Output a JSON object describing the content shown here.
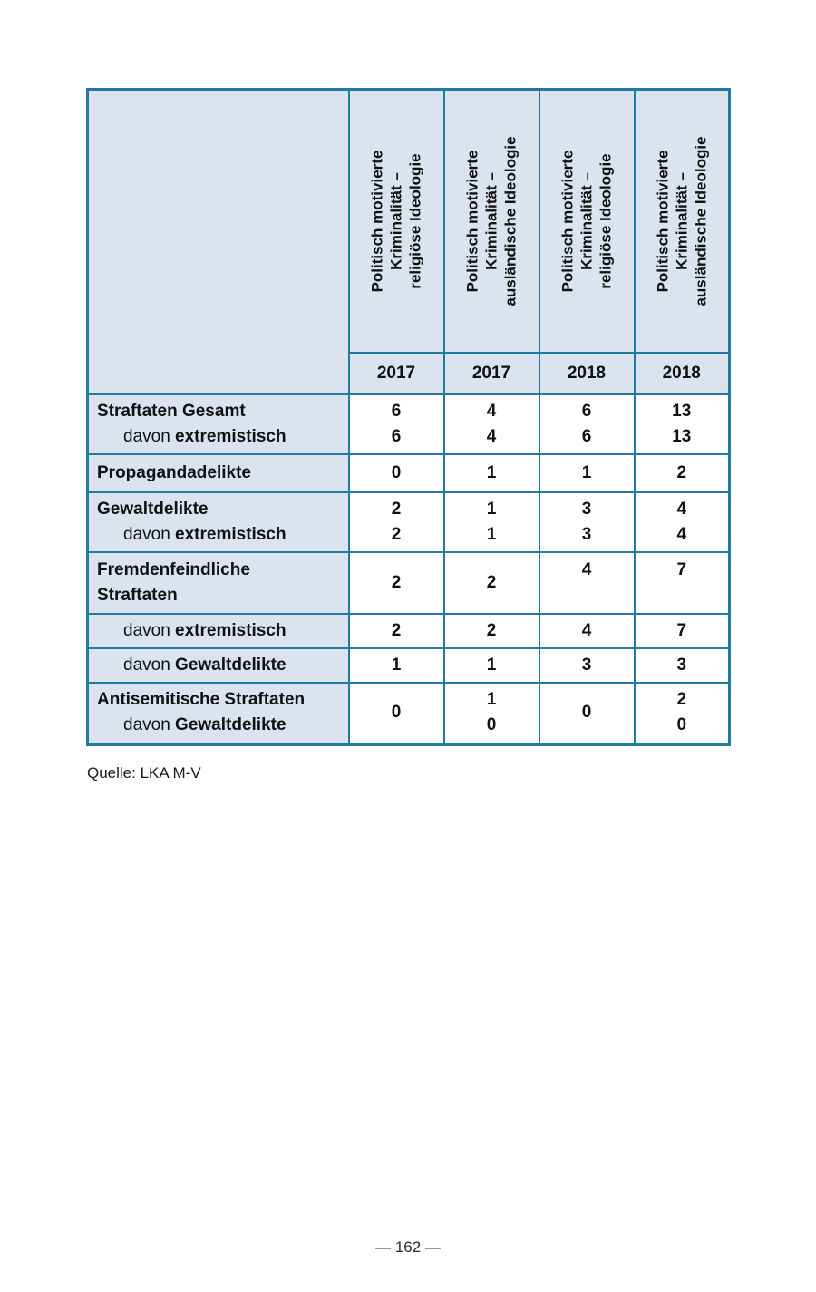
{
  "table": {
    "header": {
      "columns": [
        {
          "lines": [
            "Politisch motivierte",
            "Kriminalität –",
            "religiöse Ideologie"
          ],
          "year": "2017"
        },
        {
          "lines": [
            "Politisch motivierte",
            "Kriminalität –",
            "ausländische Ideologie"
          ],
          "year": "2017"
        },
        {
          "lines": [
            "Politisch motivierte",
            "Kriminalität –",
            "religiöse Ideologie"
          ],
          "year": "2018"
        },
        {
          "lines": [
            "Politisch motivierte",
            "Kriminalität –",
            "ausländische Ideologie"
          ],
          "year": "2018"
        }
      ]
    },
    "rows": [
      {
        "label_lines": [
          {
            "prefix": "",
            "text": "Straftaten Gesamt"
          },
          {
            "prefix": "davon ",
            "text": "extremistisch"
          }
        ],
        "values": [
          [
            "6",
            "6"
          ],
          [
            "4",
            "4"
          ],
          [
            "6",
            "6"
          ],
          [
            "13",
            "13"
          ]
        ]
      },
      {
        "label_lines": [
          {
            "prefix": "",
            "text": "Propagandadelikte"
          }
        ],
        "values": [
          [
            "0"
          ],
          [
            "1"
          ],
          [
            "1"
          ],
          [
            "2"
          ]
        ]
      },
      {
        "label_lines": [
          {
            "prefix": "",
            "text": "Gewaltdelikte"
          },
          {
            "prefix": "davon ",
            "text": "extremistisch"
          }
        ],
        "values": [
          [
            "2",
            "2"
          ],
          [
            "1",
            "1"
          ],
          [
            "3",
            "3"
          ],
          [
            "4",
            "4"
          ]
        ]
      },
      {
        "label_lines": [
          {
            "prefix": "",
            "text": "Fremdenfeindliche"
          },
          {
            "prefix": "",
            "text": "Straftaten"
          }
        ],
        "values": [
          [
            "2"
          ],
          [
            "2"
          ],
          [
            "4"
          ],
          [
            "7"
          ]
        ]
      },
      {
        "label_lines": [
          {
            "prefix": "davon ",
            "text": "extremistisch"
          }
        ],
        "values": [
          [
            "2"
          ],
          [
            "2"
          ],
          [
            "4"
          ],
          [
            "7"
          ]
        ]
      },
      {
        "label_lines": [
          {
            "prefix": "davon ",
            "text": "Gewaltdelikte"
          }
        ],
        "values": [
          [
            "1"
          ],
          [
            "1"
          ],
          [
            "3"
          ],
          [
            "3"
          ]
        ]
      },
      {
        "label_lines": [
          {
            "prefix": "",
            "text": "Antisemitische Straftaten"
          },
          {
            "prefix": "davon ",
            "text": "Gewaltdelikte"
          }
        ],
        "values": [
          [
            "0"
          ],
          [
            "1",
            "0"
          ],
          [
            "0"
          ],
          [
            "2",
            "0"
          ]
        ]
      }
    ]
  },
  "source_note": "Quelle: LKA M-V",
  "page_number": "— 162 —",
  "colors": {
    "border": "#217ba1",
    "header_bg": "#dbe4ee",
    "text": "#111111"
  }
}
